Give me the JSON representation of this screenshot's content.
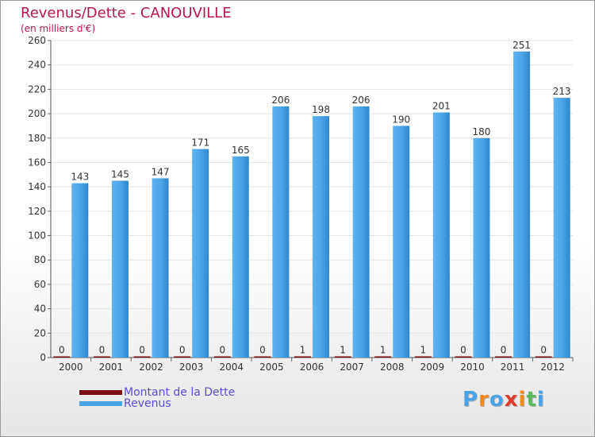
{
  "chart_data": {
    "type": "bar",
    "title": "Revenus/Dette - CANOUVILLE",
    "subtitle": "(en milliers d'€)",
    "xlabel": "",
    "ylabel": "",
    "categories": [
      "2000",
      "2001",
      "2002",
      "2003",
      "2004",
      "2005",
      "2006",
      "2007",
      "2008",
      "2009",
      "2010",
      "2011",
      "2012"
    ],
    "series": [
      {
        "name": "Montant de la Dette",
        "color": "#7a0f14",
        "values": [
          0,
          0,
          0,
          0,
          0,
          0,
          1,
          1,
          1,
          1,
          0,
          0,
          0
        ]
      },
      {
        "name": "Revenus",
        "color": "#4aa3e6",
        "values": [
          143,
          145,
          147,
          171,
          165,
          206,
          198,
          206,
          190,
          201,
          180,
          251,
          213
        ]
      }
    ],
    "ylim": [
      0,
      260
    ],
    "yticks": [
      0,
      20,
      40,
      60,
      80,
      100,
      120,
      140,
      160,
      180,
      200,
      220,
      240,
      260
    ],
    "grid": true,
    "legend": "bottom-left"
  },
  "legend": {
    "debt_label": "Montant de la Dette",
    "revenue_label": "Revenus"
  },
  "brand": {
    "letters": [
      "P",
      "r",
      "o",
      "x",
      "i",
      "t",
      "i"
    ],
    "colors": [
      "#4aa3e6",
      "#f08a1e",
      "#4aa3e6",
      "#e23c2d",
      "#f08a1e",
      "#5cb85c",
      "#4aa3e6"
    ]
  }
}
